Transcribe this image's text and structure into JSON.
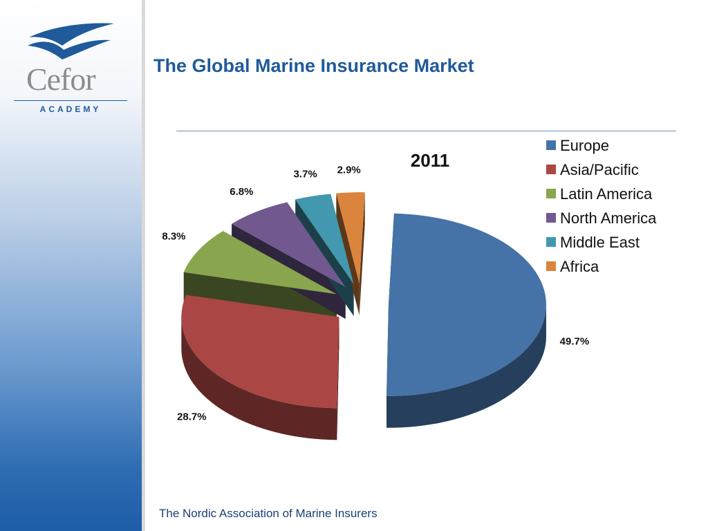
{
  "header": {
    "title": "The Global Marine Insurance Market"
  },
  "logo": {
    "name": "Cefor",
    "subtitle": "ACADEMY"
  },
  "footer": {
    "text": "The Nordic Association of Marine Insurers"
  },
  "chart_data": {
    "type": "pie",
    "style": "3d-exploded",
    "title": "2011",
    "legend_position": "right",
    "categories": [
      "Europe",
      "Asia/Pacific",
      "Latin America",
      "North America",
      "Middle East",
      "Africa"
    ],
    "values": [
      49.7,
      28.7,
      8.3,
      6.8,
      3.7,
      2.9
    ],
    "labels": [
      "49.7%",
      "28.7%",
      "8.3%",
      "6.8%",
      "3.7%",
      "2.9%"
    ],
    "colors": [
      "#4573a7",
      "#aa4643",
      "#89a54e",
      "#71588f",
      "#4198af",
      "#db843d"
    ]
  }
}
